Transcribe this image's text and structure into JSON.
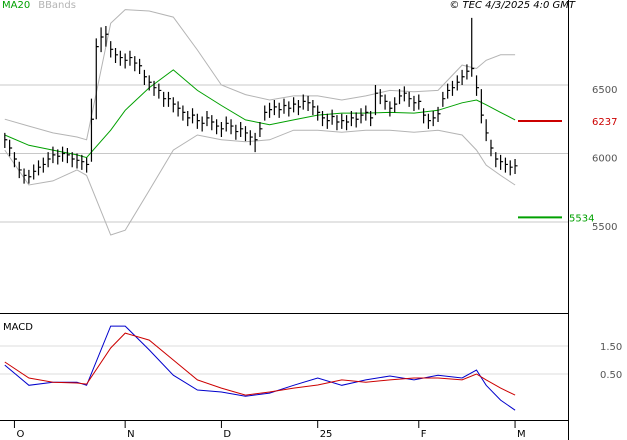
{
  "chart_data": [
    {
      "type": "ohlc",
      "title": "© TEC 4/3/2025 4:0 GMT",
      "xlim": [
        -1,
        117
      ],
      "xticks": [
        {
          "value": 2,
          "label": "O"
        },
        {
          "value": 25,
          "label": "N"
        },
        {
          "value": 45,
          "label": "D"
        },
        {
          "value": 65,
          "label": "25"
        },
        {
          "value": 86,
          "label": "F"
        },
        {
          "value": 106,
          "label": "M"
        }
      ],
      "ylim": [
        4836,
        7120
      ],
      "yticks": [
        5500,
        6000,
        6500
      ],
      "grid": true,
      "color": "#000000",
      "high": [
        6150,
        6100,
        6010,
        5940,
        5890,
        5880,
        5920,
        5950,
        5970,
        6010,
        6050,
        6030,
        6050,
        6040,
        6010,
        6000,
        5990,
        5970,
        6400,
        6840,
        6920,
        6930,
        6820,
        6770,
        6750,
        6730,
        6750,
        6710,
        6690,
        6610,
        6570,
        6530,
        6510,
        6450,
        6450,
        6410,
        6380,
        6350,
        6310,
        6330,
        6290,
        6270,
        6310,
        6280,
        6250,
        6230,
        6270,
        6250,
        6210,
        6230,
        6200,
        6170,
        6150,
        6230,
        6350,
        6370,
        6390,
        6370,
        6400,
        6380,
        6410,
        6390,
        6430,
        6420,
        6390,
        6350,
        6310,
        6290,
        6320,
        6280,
        6290,
        6280,
        6310,
        6300,
        6330,
        6350,
        6310,
        6500,
        6470,
        6430,
        6380,
        6410,
        6470,
        6490,
        6450,
        6420,
        6430,
        6330,
        6290,
        6310,
        6340,
        6450,
        6510,
        6530,
        6570,
        6610,
        6650,
        6990,
        6570,
        6470,
        6250,
        6100,
        6010,
        5990,
        5970,
        5950,
        5960
      ],
      "low": [
        6040,
        5980,
        5900,
        5820,
        5780,
        5780,
        5810,
        5840,
        5860,
        5900,
        5930,
        5920,
        5940,
        5930,
        5900,
        5890,
        5880,
        5860,
        5940,
        6250,
        6740,
        6780,
        6700,
        6660,
        6640,
        6620,
        6640,
        6600,
        6580,
        6500,
        6460,
        6420,
        6400,
        6340,
        6340,
        6300,
        6270,
        6240,
        6200,
        6220,
        6180,
        6160,
        6200,
        6170,
        6140,
        6120,
        6160,
        6140,
        6100,
        6120,
        6090,
        6060,
        6010,
        6120,
        6240,
        6260,
        6280,
        6260,
        6290,
        6270,
        6300,
        6280,
        6320,
        6310,
        6280,
        6240,
        6200,
        6180,
        6210,
        6170,
        6180,
        6170,
        6200,
        6190,
        6220,
        6240,
        6200,
        6280,
        6360,
        6320,
        6270,
        6300,
        6360,
        6380,
        6340,
        6310,
        6320,
        6220,
        6180,
        6200,
        6230,
        6340,
        6400,
        6420,
        6460,
        6500,
        6540,
        6560,
        6420,
        6220,
        6090,
        5980,
        5900,
        5880,
        5860,
        5840,
        5850
      ],
      "close": [
        6100,
        6040,
        5960,
        5880,
        5840,
        5830,
        5870,
        5900,
        5920,
        5960,
        5990,
        5980,
        6000,
        5990,
        5960,
        5950,
        5940,
        5920,
        6250,
        6780,
        6850,
        6870,
        6760,
        6720,
        6700,
        6680,
        6700,
        6660,
        6640,
        6560,
        6520,
        6480,
        6460,
        6400,
        6400,
        6360,
        6330,
        6300,
        6260,
        6280,
        6240,
        6220,
        6260,
        6230,
        6200,
        6180,
        6220,
        6200,
        6160,
        6180,
        6150,
        6120,
        6100,
        6180,
        6300,
        6320,
        6340,
        6320,
        6350,
        6330,
        6360,
        6340,
        6380,
        6370,
        6340,
        6300,
        6260,
        6240,
        6270,
        6230,
        6240,
        6230,
        6260,
        6250,
        6280,
        6300,
        6260,
        6440,
        6420,
        6380,
        6330,
        6360,
        6420,
        6440,
        6400,
        6370,
        6380,
        6280,
        6240,
        6260,
        6290,
        6400,
        6460,
        6480,
        6520,
        6560,
        6600,
        6620,
        6480,
        6280,
        6150,
        6040,
        5960,
        5940,
        5920,
        5900,
        5910
      ],
      "line_x": [
        0,
        5,
        10,
        15,
        17,
        22,
        25,
        30,
        35,
        40,
        45,
        50,
        55,
        60,
        65,
        70,
        75,
        80,
        85,
        90,
        95,
        98,
        100,
        103,
        106
      ],
      "series": [
        {
          "name": "MA20",
          "color": "#00a000",
          "values": [
            6135,
            6060,
            6025,
            5990,
            5970,
            6170,
            6315,
            6480,
            6610,
            6460,
            6350,
            6245,
            6210,
            6245,
            6280,
            6295,
            6295,
            6300,
            6295,
            6315,
            6370,
            6390,
            6355,
            6300,
            6245
          ]
        },
        {
          "name": "BBands",
          "color": "#b4b4b4",
          "upper": [
            6250,
            6200,
            6150,
            6120,
            6100,
            6950,
            7050,
            7040,
            6995,
            6755,
            6500,
            6430,
            6390,
            6420,
            6420,
            6390,
            6420,
            6460,
            6450,
            6460,
            6645,
            6620,
            6680,
            6720,
            6720
          ],
          "lower": [
            6025,
            5770,
            5800,
            5880,
            5840,
            5405,
            5440,
            5730,
            6025,
            6135,
            6100,
            6085,
            6100,
            6170,
            6170,
            6155,
            6170,
            6170,
            6155,
            6170,
            6135,
            6025,
            5915,
            5840,
            5770
          ]
        }
      ],
      "levels": [
        {
          "value": 6237,
          "color": "#cc0000"
        },
        {
          "value": 5534,
          "color": "#00a000"
        }
      ]
    },
    {
      "type": "line",
      "title": "MACD",
      "xlim": [
        -1,
        117
      ],
      "ylim": [
        -1.14,
        2.5
      ],
      "yticks": [
        {
          "value": 1.5,
          "label": "1.50"
        },
        {
          "value": 0.5,
          "label": "0.50"
        }
      ],
      "x": [
        0,
        5,
        10,
        15,
        17,
        22,
        25,
        30,
        35,
        40,
        45,
        50,
        55,
        60,
        65,
        70,
        75,
        80,
        85,
        90,
        95,
        98,
        100,
        103,
        106
      ],
      "series": [
        {
          "color": "#0000cc",
          "values": [
            0.82,
            0.1,
            0.21,
            0.21,
            0.1,
            2.21,
            2.21,
            1.36,
            0.46,
            -0.07,
            -0.14,
            -0.29,
            -0.18,
            0.1,
            0.36,
            0.1,
            0.29,
            0.43,
            0.29,
            0.46,
            0.36,
            0.64,
            0.1,
            -0.43,
            -0.79
          ]
        },
        {
          "color": "#cc0000",
          "values": [
            0.93,
            0.36,
            0.21,
            0.18,
            0.14,
            1.43,
            1.96,
            1.71,
            1.0,
            0.29,
            0,
            -0.25,
            -0.14,
            0,
            0.11,
            0.29,
            0.21,
            0.29,
            0.36,
            0.36,
            0.29,
            0.5,
            0.29,
            0,
            -0.25
          ]
        }
      ]
    }
  ]
}
